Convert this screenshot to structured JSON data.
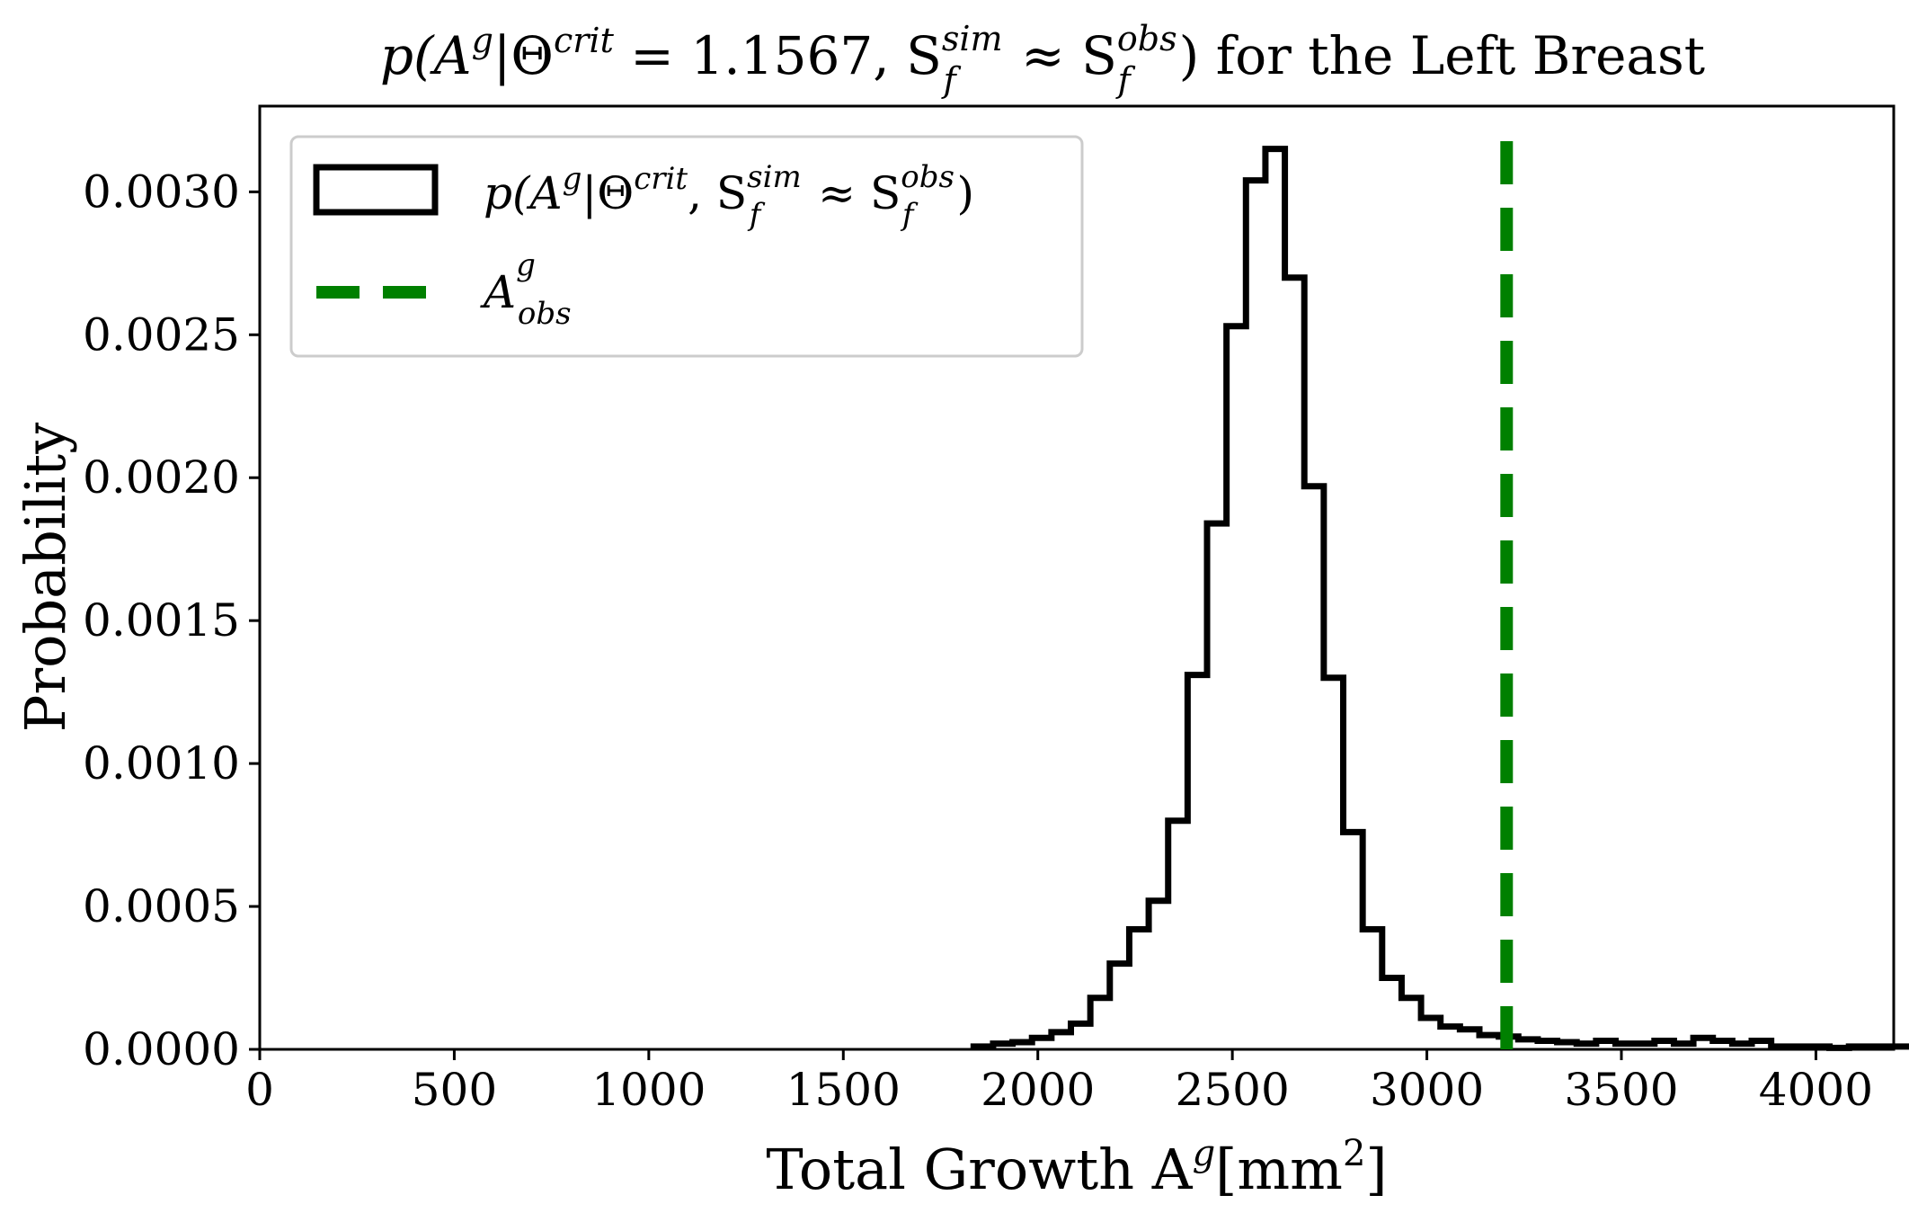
{
  "chart_data": {
    "type": "histogram",
    "title": {
      "pre": "p(A",
      "sup1": "g",
      "mid": "|Θ",
      "sup2": "crit",
      "eq": " = 1.1567, S",
      "sup3": "sim",
      "sub3": "f",
      "approx": " ≈ S",
      "sup4": "obs",
      "sub4": "f",
      "post": ") for the Left Breast"
    },
    "xlabel": {
      "text": "Total Growth A",
      "sup": "g",
      "unit_open": "[mm",
      "unit_sup": "2",
      "unit_close": "]"
    },
    "ylabel": "Probability",
    "xlim": [
      0,
      4200
    ],
    "ylim": [
      0,
      0.0033
    ],
    "x_ticks": [
      "0",
      "500",
      "1000",
      "1500",
      "2000",
      "2500",
      "3000",
      "3500",
      "4000"
    ],
    "y_ticks": [
      "0.0000",
      "0.0005",
      "0.0010",
      "0.0015",
      "0.0020",
      "0.0025",
      "0.0030"
    ],
    "bin_width": 50,
    "bins_start": 1835,
    "values": [
      1e-05,
      2e-05,
      2.5e-05,
      4e-05,
      6e-05,
      9e-05,
      0.00018,
      0.0003,
      0.00042,
      0.00052,
      0.0008,
      0.00131,
      0.00184,
      0.00253,
      0.00304,
      0.00315,
      0.0027,
      0.00197,
      0.0013,
      0.00076,
      0.00042,
      0.00025,
      0.00018,
      0.00011,
      8e-05,
      7e-05,
      5e-05,
      4.5e-05,
      3.5e-05,
      3e-05,
      2.5e-05,
      2e-05,
      3e-05,
      2e-05,
      2e-05,
      3e-05,
      2e-05,
      4e-05,
      3e-05,
      2e-05,
      3e-05,
      1e-05,
      1e-05,
      1e-05,
      5e-06,
      1e-05,
      1e-05,
      1e-05,
      1e-05,
      1e-05,
      1e-05,
      1e-05,
      5e-06,
      1e-05
    ],
    "observed_value": 3205,
    "histogram_color": "#000000",
    "observed_color": "#008000",
    "grid": false,
    "legend_position": "top-left",
    "legend": [
      {
        "pre": "p(A",
        "sup1": "g",
        "mid": "|Θ",
        "sup2": "crit",
        "mid2": ", S",
        "sup3": "sim",
        "sub3": "f",
        "approx": " ≈ S",
        "sup4": "obs",
        "sub4": "f",
        "post": ")"
      },
      {
        "pre": "A",
        "sup": "g",
        "sub": "obs"
      }
    ]
  }
}
